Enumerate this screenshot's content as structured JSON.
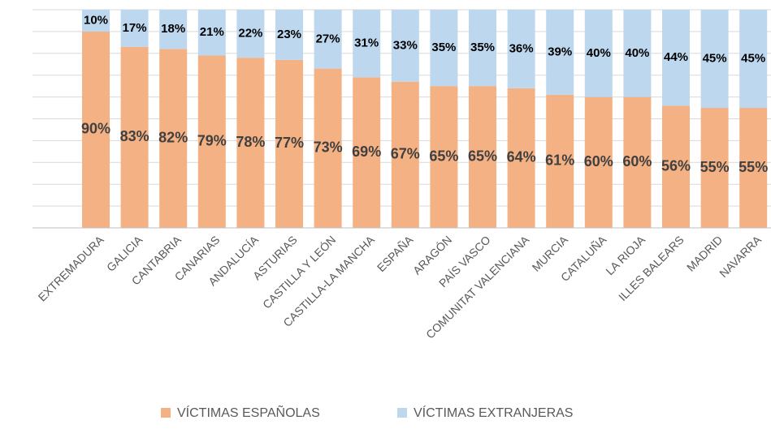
{
  "chart_data": {
    "type": "stacked_bar",
    "categories": [
      "EXTREMADURA",
      "GALICIA",
      "CANTABRIA",
      "CANARIAS",
      "ANDALUCÍA",
      "ASTURIAS",
      "CASTILLA Y LEÓN",
      "CASTILLA-LA MANCHA",
      "ESPAÑA",
      "ARAGÓN",
      "PAÍS VASCO",
      "COMUNITAT VALENCIANA",
      "MURCIA",
      "CATALUÑA",
      "LA RIOJA",
      "ILLES BALEARS",
      "MADRID",
      "NAVARRA"
    ],
    "series": [
      {
        "name": "VÍCTIMAS ESPAÑOLAS",
        "color": "#f4b183",
        "values": [
          90,
          83,
          82,
          79,
          78,
          77,
          73,
          69,
          67,
          65,
          65,
          64,
          61,
          60,
          60,
          56,
          55,
          55
        ],
        "value_labels": [
          "90%",
          "83%",
          "82%",
          "79%",
          "78%",
          "77%",
          "73%",
          "69%",
          "67%",
          "65%",
          "65%",
          "64%",
          "61%",
          "60%",
          "60%",
          "56%",
          "55%",
          "55%"
        ]
      },
      {
        "name": "VÍCTIMAS EXTRANJERAS",
        "color": "#bdd7ee",
        "values": [
          10,
          17,
          18,
          21,
          22,
          23,
          27,
          31,
          33,
          35,
          35,
          36,
          39,
          40,
          40,
          44,
          45,
          45
        ],
        "value_labels": [
          "10%",
          "17%",
          "18%",
          "21%",
          "22%",
          "23%",
          "27%",
          "31%",
          "33%",
          "35%",
          "35%",
          "36%",
          "39%",
          "40%",
          "40%",
          "44%",
          "45%",
          "45%"
        ]
      }
    ],
    "ylim": [
      0,
      100
    ],
    "yticks": [
      0,
      10,
      20,
      30,
      40,
      50,
      60,
      70,
      80,
      90,
      100
    ],
    "grid": true
  }
}
